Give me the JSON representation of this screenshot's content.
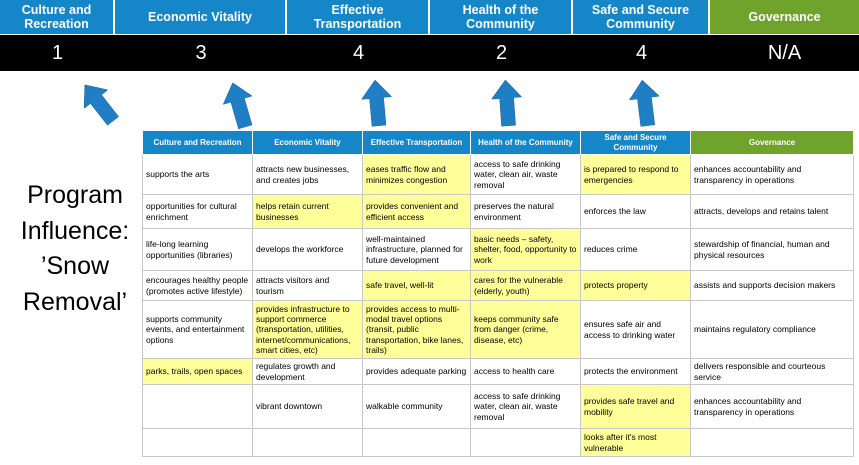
{
  "slide": {
    "program_label": "Program Influence: ’Snow Removal’"
  },
  "pillars": [
    {
      "name": "Culture and Recreation",
      "score": "1"
    },
    {
      "name": "Economic Vitality",
      "score": "3"
    },
    {
      "name": "Effective Transportation",
      "score": "4"
    },
    {
      "name": "Health of the Community",
      "score": "2"
    },
    {
      "name": "Safe and Secure Community",
      "score": "4"
    },
    {
      "name": "Governance",
      "score": "N/A"
    }
  ],
  "arrows": {
    "count": 5,
    "direction": "up",
    "color": "#1f7ec4"
  },
  "colors": {
    "pillar_blue": "#1586c8",
    "governance_green": "#6fa32b",
    "highlight_yellow": "#ffff99",
    "score_band_black": "#000000",
    "arrow_blue": "#1f7ec4"
  },
  "table": {
    "headers": [
      {
        "label": "Culture and Recreation",
        "color": "blue"
      },
      {
        "label": "Economic Vitality",
        "color": "blue"
      },
      {
        "label": "Effective Transportation",
        "color": "blue"
      },
      {
        "label": "Health of the Community",
        "color": "blue"
      },
      {
        "label": "Safe and Secure Community",
        "color": "blue"
      },
      {
        "label": "Governance",
        "color": "green"
      }
    ],
    "rows": [
      [
        {
          "text": "supports the arts",
          "h": false
        },
        {
          "text": "attracts new businesses, and creates jobs",
          "h": false
        },
        {
          "text": "eases traffic flow and minimizes congestion",
          "h": true
        },
        {
          "text": "access to safe drinking water, clean air, waste removal",
          "h": false
        },
        {
          "text": "is prepared to respond to emergencies",
          "h": true
        },
        {
          "text": "enhances accountability and transparency in operations",
          "h": false
        }
      ],
      [
        {
          "text": "opportunities for cultural enrichment",
          "h": false
        },
        {
          "text": "helps retain current businesses",
          "h": true
        },
        {
          "text": "provides convenient and efficient access",
          "h": true
        },
        {
          "text": "preserves the natural environment",
          "h": false
        },
        {
          "text": "enforces the law",
          "h": false
        },
        {
          "text": "attracts, develops and retains talent",
          "h": false
        }
      ],
      [
        {
          "text": "life-long learning opportunities (libraries)",
          "h": false
        },
        {
          "text": "develops the workforce",
          "h": false
        },
        {
          "text": "well-maintained infrastructure, planned for future development",
          "h": false
        },
        {
          "text": "basic needs – safety, shelter, food, opportunity to work",
          "h": true
        },
        {
          "text": "reduces crime",
          "h": false
        },
        {
          "text": "stewardship of financial, human and physical resources",
          "h": false
        }
      ],
      [
        {
          "text": "encourages healthy people (promotes active lifestyle)",
          "h": false
        },
        {
          "text": "attracts visitors and tourism",
          "h": false
        },
        {
          "text": "safe travel, well-lit",
          "h": true
        },
        {
          "text": "cares for the vulnerable (elderly, youth)",
          "h": true
        },
        {
          "text": "protects property",
          "h": true
        },
        {
          "text": "assists and supports decision makers",
          "h": false
        }
      ],
      [
        {
          "text": "supports community events, and entertainment options",
          "h": false
        },
        {
          "text": "provides infrastructure to support commerce (transportation, utilities, internet/communications, smart cities, etc)",
          "h": true
        },
        {
          "text": "provides access to multi-modal travel options (transit, public transportation, bike lanes, trails)",
          "h": true
        },
        {
          "text": "keeps community safe from danger (crime, disease, etc)",
          "h": true
        },
        {
          "text": "ensures safe air and access to drinking water",
          "h": false
        },
        {
          "text": "maintains regulatory compliance",
          "h": false
        }
      ],
      [
        {
          "text": "parks, trails, open spaces",
          "h": true
        },
        {
          "text": "regulates growth and development",
          "h": false
        },
        {
          "text": "provides adequate parking",
          "h": false
        },
        {
          "text": "access to health care",
          "h": false
        },
        {
          "text": "protects the environment",
          "h": false
        },
        {
          "text": "delivers responsible and courteous service",
          "h": false
        }
      ],
      [
        {
          "text": "",
          "h": false
        },
        {
          "text": "vibrant downtown",
          "h": false
        },
        {
          "text": "walkable community",
          "h": false
        },
        {
          "text": "access to safe drinking water, clean air, waste removal",
          "h": false
        },
        {
          "text": "provides safe travel and mobility",
          "h": true
        },
        {
          "text": "enhances accountability and transparency in operations",
          "h": false
        }
      ],
      [
        {
          "text": "",
          "h": false
        },
        {
          "text": "",
          "h": false
        },
        {
          "text": "",
          "h": false
        },
        {
          "text": "",
          "h": false
        },
        {
          "text": "looks after it's most vulnerable",
          "h": true
        },
        {
          "text": "",
          "h": false
        }
      ]
    ]
  }
}
